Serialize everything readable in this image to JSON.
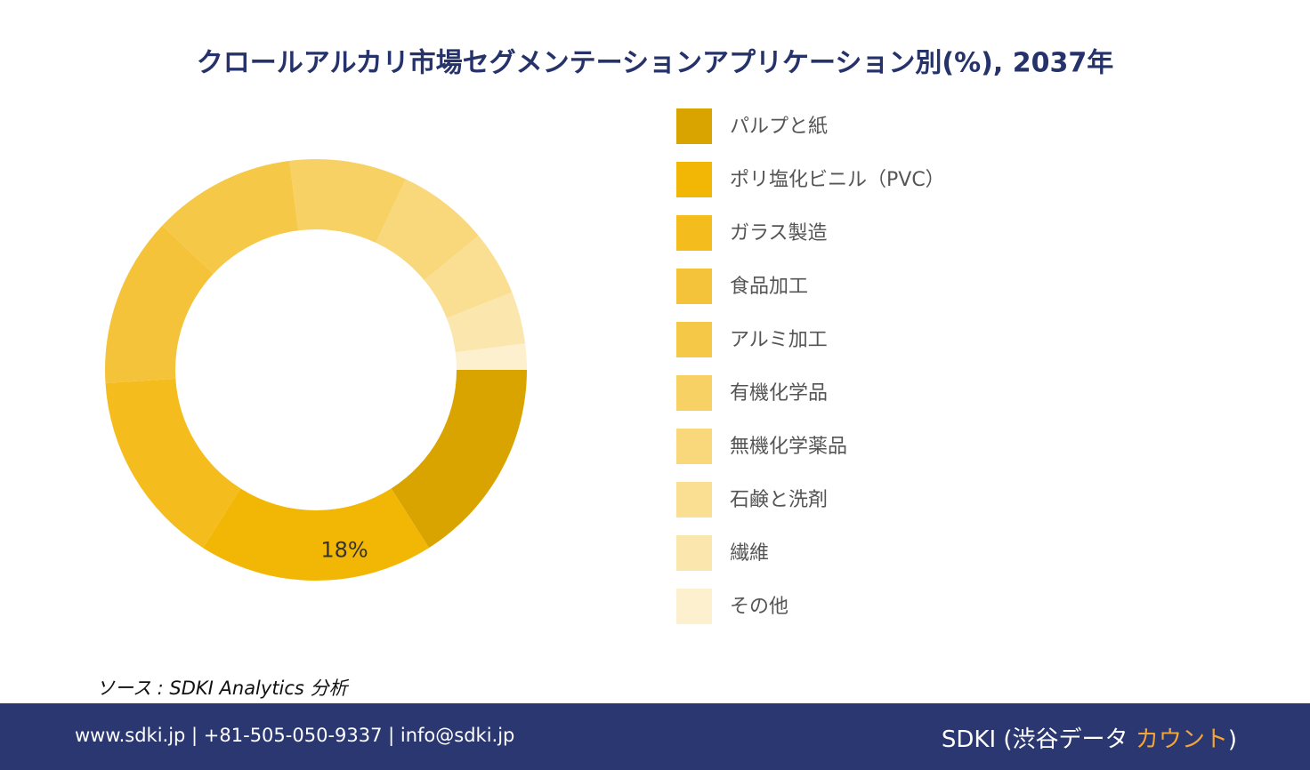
{
  "chart_data": {
    "type": "donut",
    "title": "クロールアルカリ市場セグメンテーションアプリケーション別(%), 2037年",
    "categories": [
      "パルプと紙",
      "ポリ塩化ビニル（PVC）",
      "ガラス製造",
      "食品加工",
      "アルミ加工",
      "有機化学品",
      "無機化学薬品",
      "石鹸と洗剤",
      "繊維",
      "その他"
    ],
    "values": [
      16,
      18,
      15,
      13,
      11,
      9,
      7,
      5,
      4,
      2
    ],
    "value_labels": [
      null,
      "18%",
      null,
      null,
      null,
      null,
      null,
      null,
      null,
      null
    ],
    "colors": [
      "#D9A400",
      "#F2B705",
      "#F4BC1C",
      "#F5C33A",
      "#F6C847",
      "#F7D164",
      "#F8D87A",
      "#FADF92",
      "#FBE7AE",
      "#FDF0CF"
    ],
    "legend": "right"
  },
  "source": "ソース : SDKI Analytics 分析",
  "footer": {
    "contact": "www.sdki.jp | +81-505-050-9337 | info@sdki.jp",
    "brand": "SDKI (渋谷データ ",
    "brand_accent": "カウント",
    "brand_end": ")"
  }
}
